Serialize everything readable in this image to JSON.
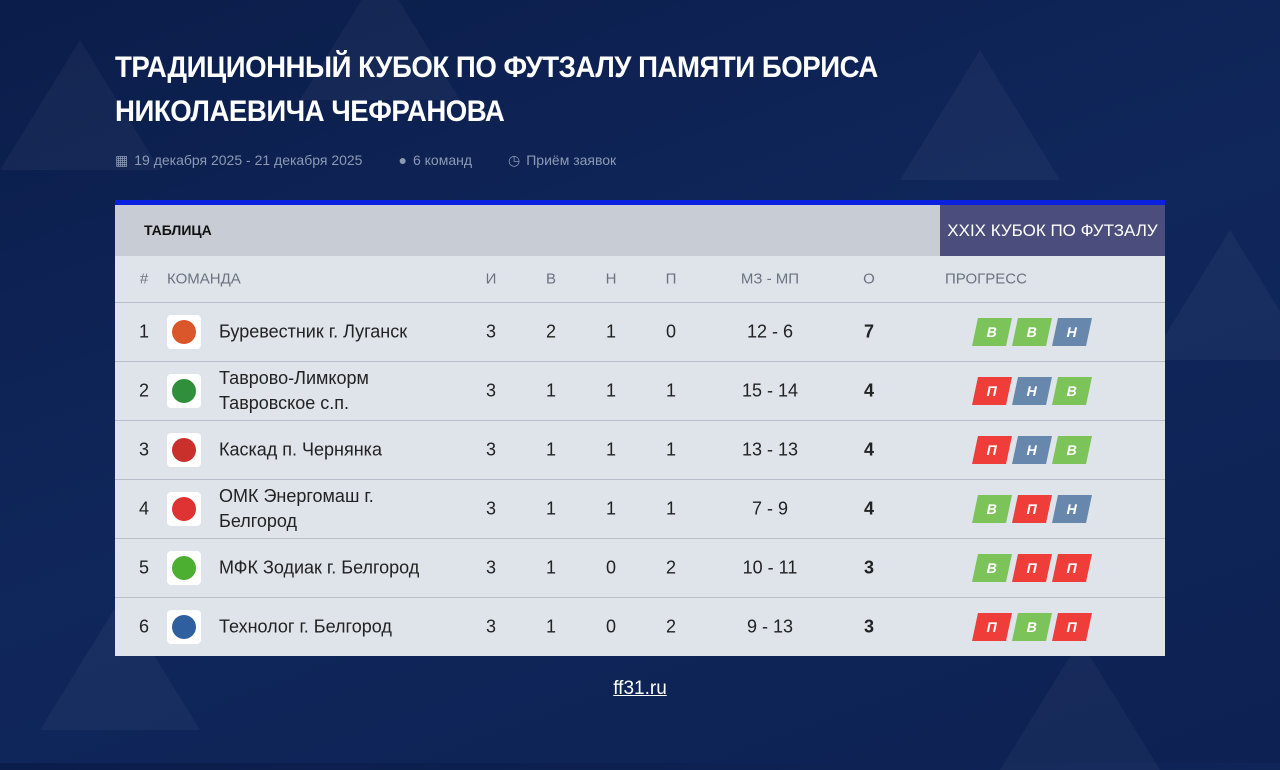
{
  "title": "ТРАДИЦИОННЫЙ КУБОК ПО ФУТЗАЛУ ПАМЯТИ БОРИСА НИКОЛАЕВИЧА ЧЕФРАНОВА",
  "meta": {
    "dates": "19 декабря 2025 - 21 декабря 2025",
    "teams": "6 команд",
    "status": "Приём заявок"
  },
  "table": {
    "label": "ТАБЛИЦА",
    "tab": "XXIX КУБОК ПО ФУТЗАЛУ",
    "columns": [
      "#",
      "КОМАНДА",
      "И",
      "В",
      "Н",
      "П",
      "МЗ - МП",
      "О",
      "ПРОГРЕСС"
    ],
    "rows": [
      {
        "pos": "1",
        "team": "Буревестник г. Луганск",
        "p": "3",
        "w": "2",
        "d": "1",
        "l": "0",
        "goals": "12 - 6",
        "pts": "7",
        "form": [
          "В",
          "В",
          "Н"
        ]
      },
      {
        "pos": "2",
        "team": "Таврово-Лимкорм Тавровское с.п.",
        "p": "3",
        "w": "1",
        "d": "1",
        "l": "1",
        "goals": "15 - 14",
        "pts": "4",
        "form": [
          "П",
          "Н",
          "В"
        ]
      },
      {
        "pos": "3",
        "team": "Каскад п. Чернянка",
        "p": "3",
        "w": "1",
        "d": "1",
        "l": "1",
        "goals": "13 - 13",
        "pts": "4",
        "form": [
          "П",
          "Н",
          "В"
        ]
      },
      {
        "pos": "4",
        "team": "ОМК Энергомаш г. Белгород",
        "p": "3",
        "w": "1",
        "d": "1",
        "l": "1",
        "goals": "7 - 9",
        "pts": "4",
        "form": [
          "В",
          "П",
          "Н"
        ]
      },
      {
        "pos": "5",
        "team": "МФК Зодиак г. Белгород",
        "p": "3",
        "w": "1",
        "d": "0",
        "l": "2",
        "goals": "10 - 11",
        "pts": "3",
        "form": [
          "В",
          "П",
          "П"
        ]
      },
      {
        "pos": "6",
        "team": "Технолог г. Белгород",
        "p": "3",
        "w": "1",
        "d": "0",
        "l": "2",
        "goals": "9 - 13",
        "pts": "3",
        "form": [
          "П",
          "В",
          "П"
        ]
      }
    ]
  },
  "colors": {
    "В": "#7cc35a",
    "П": "#ef3e3a",
    "Н": "#6787ad",
    "accent": "#0a22e0"
  },
  "logo_colors": [
    "#d9572b",
    "#2f8f3a",
    "#c9302c",
    "#d33",
    "#4caf2f",
    "#2f5f9f"
  ],
  "footer": {
    "link": "ff31.ru"
  }
}
